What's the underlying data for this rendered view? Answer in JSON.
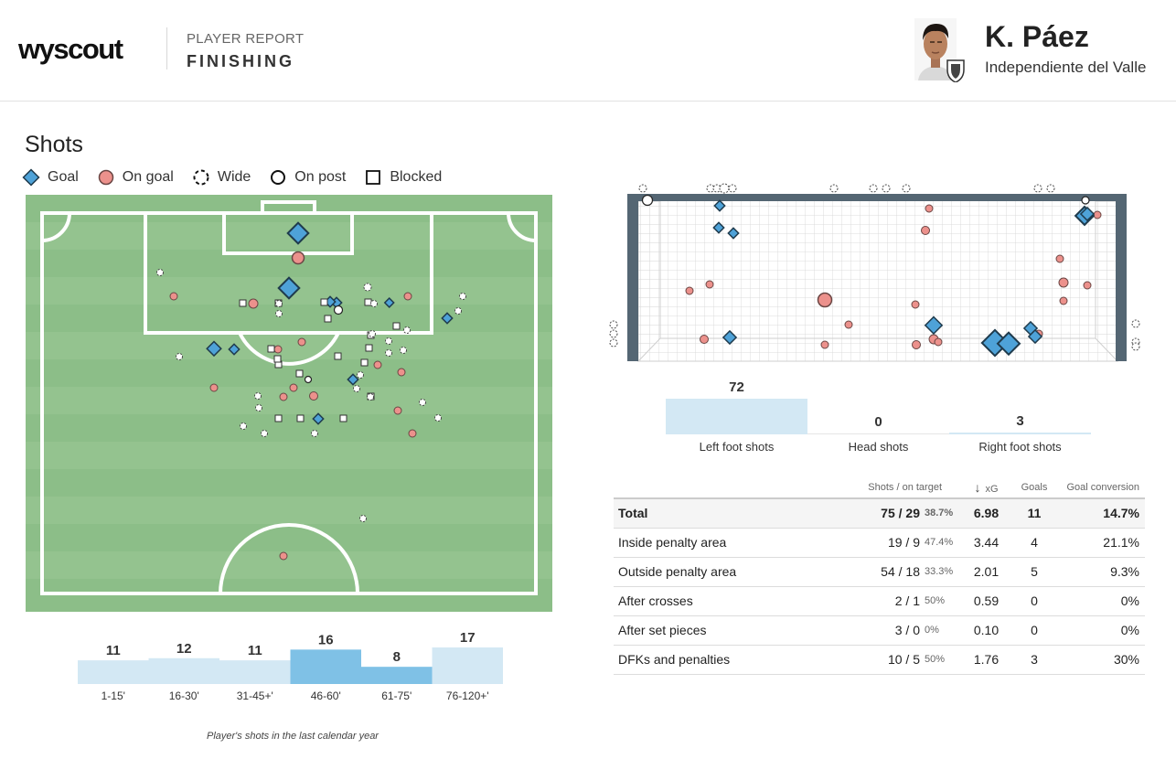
{
  "header": {
    "logo": "wyscout",
    "report_type": "PLAYER REPORT",
    "report_name": "FINISHING",
    "player_name": "K. Páez",
    "club": "Independiente del Valle"
  },
  "shots": {
    "title": "Shots",
    "legend": [
      {
        "key": "goal",
        "label": "Goal",
        "color": "#4ea2d8"
      },
      {
        "key": "on_goal",
        "label": "On goal",
        "color": "#ec918c"
      },
      {
        "key": "wide",
        "label": "Wide"
      },
      {
        "key": "on_post",
        "label": "On post"
      },
      {
        "key": "blocked",
        "label": "Blocked"
      }
    ],
    "footnote": "Player's shots in the last calendar year"
  },
  "colors": {
    "pitch_dark": "#8cbe88",
    "pitch_light": "#94c38f",
    "goal": "#4ea2d8",
    "on_goal": "#ec918c",
    "bar_fill": "#d3e8f4",
    "bar_highlight": "#7fc1e6",
    "goal_frame": "#546673"
  },
  "time_intervals": {
    "labels": [
      "1-15'",
      "16-30'",
      "31-45+'",
      "46-60'",
      "61-75'",
      "76-120+'"
    ],
    "values": [
      11,
      12,
      11,
      16,
      8,
      17
    ]
  },
  "foot_shots": {
    "labels": [
      "Left foot shots",
      "Head shots",
      "Right foot shots"
    ],
    "values": [
      72,
      0,
      3
    ]
  },
  "table": {
    "headers": {
      "shots": "Shots / on target",
      "sort_arrow": "↓",
      "xg": "xG",
      "goals": "Goals",
      "conversion": "Goal conversion"
    },
    "rows": [
      {
        "label": "Total",
        "shots": "75 / 29",
        "pct": "38.7%",
        "xg": "6.98",
        "goals": "11",
        "conversion": "14.7%"
      },
      {
        "label": "Inside penalty area",
        "shots": "19 / 9",
        "pct": "47.4%",
        "xg": "3.44",
        "goals": "4",
        "conversion": "21.1%"
      },
      {
        "label": "Outside penalty area",
        "shots": "54 / 18",
        "pct": "33.3%",
        "xg": "2.01",
        "goals": "5",
        "conversion": "9.3%"
      },
      {
        "label": "After crosses",
        "shots": "2 / 1",
        "pct": "50%",
        "xg": "0.59",
        "goals": "0",
        "conversion": "0%"
      },
      {
        "label": "After set pieces",
        "shots": "3 / 0",
        "pct": "0%",
        "xg": "0.10",
        "goals": "0",
        "conversion": "0%"
      },
      {
        "label": "DFKs and penalties",
        "shots": "10 / 5",
        "pct": "50%",
        "xg": "1.76",
        "goals": "3",
        "conversion": "30%"
      }
    ]
  }
}
